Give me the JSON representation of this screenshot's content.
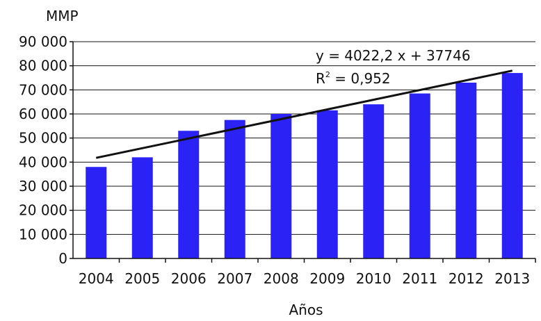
{
  "chart_data": {
    "type": "bar",
    "ylabel": "MMP",
    "xlabel": "Años",
    "categories": [
      "2004",
      "2005",
      "2006",
      "2007",
      "2008",
      "2009",
      "2010",
      "2011",
      "2012",
      "2013"
    ],
    "values": [
      38000,
      42000,
      53000,
      57500,
      60000,
      61500,
      64000,
      68500,
      73000,
      77000
    ],
    "ylim": [
      0,
      90000
    ],
    "yticks": [
      "0",
      "10 000",
      "20 000",
      "30 000",
      "40 000",
      "50 000",
      "60 000",
      "70 000",
      "80 000",
      "90 000"
    ],
    "grid": true,
    "bar_color": "#2b23f5",
    "trendline": {
      "equation": "y = 4022,2 x + 37746",
      "r2_label": "R",
      "r2_sup": "2",
      "r2_value": " = 0,952",
      "slope": 4022.2,
      "intercept": 37746
    }
  }
}
